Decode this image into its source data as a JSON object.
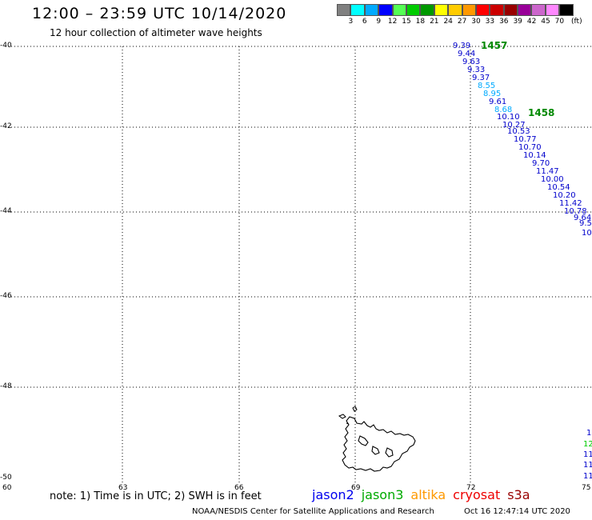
{
  "header": {
    "title": "12:00 – 23:59 UTC 10/14/2020",
    "subtitle": "12 hour collection of altimeter wave heights"
  },
  "legend": {
    "unit": "(ft)",
    "colors": [
      "#808080",
      "#00ffff",
      "#00aaff",
      "#0000ff",
      "#55ff55",
      "#00cc00",
      "#009900",
      "#ffff00",
      "#ffcc00",
      "#ff9900",
      "#ff0000",
      "#cc0000",
      "#990000",
      "#990099",
      "#cc66cc",
      "#ff88ff",
      "#000000"
    ],
    "labels": [
      "3",
      "6",
      "9",
      "12",
      "15",
      "18",
      "21",
      "24",
      "27",
      "30",
      "33",
      "36",
      "39",
      "42",
      "45",
      "70"
    ]
  },
  "axes": {
    "lat_labels": [
      "-40",
      "-42",
      "-44",
      "-46",
      "-48",
      "-50"
    ],
    "lon_labels": [
      "60",
      "63",
      "66",
      "69",
      "72",
      "75"
    ]
  },
  "passes": [
    {
      "label": "1457",
      "color": "#008800"
    },
    {
      "label": "1458",
      "color": "#008800"
    }
  ],
  "observations": [
    {
      "value": "9.39",
      "color": "#0000cc"
    },
    {
      "value": "9.44",
      "color": "#0000cc"
    },
    {
      "value": "9.63",
      "color": "#0000cc"
    },
    {
      "value": "9.33",
      "color": "#0000cc"
    },
    {
      "value": "9.37",
      "color": "#0000cc"
    },
    {
      "value": "8.55",
      "color": "#00aaff"
    },
    {
      "value": "8.95",
      "color": "#00aaff"
    },
    {
      "value": "9.61",
      "color": "#0000cc"
    },
    {
      "value": "8.68",
      "color": "#00aaff"
    },
    {
      "value": "10.10",
      "color": "#0000cc"
    },
    {
      "value": "10.27",
      "color": "#0000cc"
    },
    {
      "value": "10.53",
      "color": "#0000cc"
    },
    {
      "value": "10.77",
      "color": "#0000cc"
    },
    {
      "value": "10.70",
      "color": "#0000cc"
    },
    {
      "value": "10.14",
      "color": "#0000cc"
    },
    {
      "value": "9.70",
      "color": "#0000cc"
    },
    {
      "value": "11.47",
      "color": "#0000cc"
    },
    {
      "value": "10.00",
      "color": "#0000cc"
    },
    {
      "value": "10.54",
      "color": "#0000cc"
    },
    {
      "value": "10.20",
      "color": "#0000cc"
    },
    {
      "value": "11.42",
      "color": "#0000cc"
    },
    {
      "value": "10.78",
      "color": "#0000cc"
    },
    {
      "value": "9.64",
      "color": "#0000cc"
    },
    {
      "value": "9.5",
      "color": "#0000cc"
    },
    {
      "value": "10",
      "color": "#0000cc"
    }
  ],
  "edge_values": [
    {
      "value": "1",
      "color": "#0000cc"
    },
    {
      "value": "12",
      "color": "#00cc00"
    },
    {
      "value": "11",
      "color": "#0000cc"
    },
    {
      "value": "11",
      "color": "#0000cc"
    },
    {
      "value": "11",
      "color": "#0000cc"
    }
  ],
  "note": "note: 1) Time is in UTC; 2) SWH is in feet",
  "satellites": [
    {
      "name": "jason2",
      "color": "#0000ee"
    },
    {
      "name": "jason3",
      "color": "#00aa00"
    },
    {
      "name": "altika",
      "color": "#ff9900"
    },
    {
      "name": "cryosat",
      "color": "#ee0000"
    },
    {
      "name": "s3a",
      "color": "#990000"
    }
  ],
  "footer": {
    "credit": "NOAA/NESDIS Center for Satellite Applications and Research",
    "timestamp": "Oct 16 12:47:14 UTC 2020"
  }
}
